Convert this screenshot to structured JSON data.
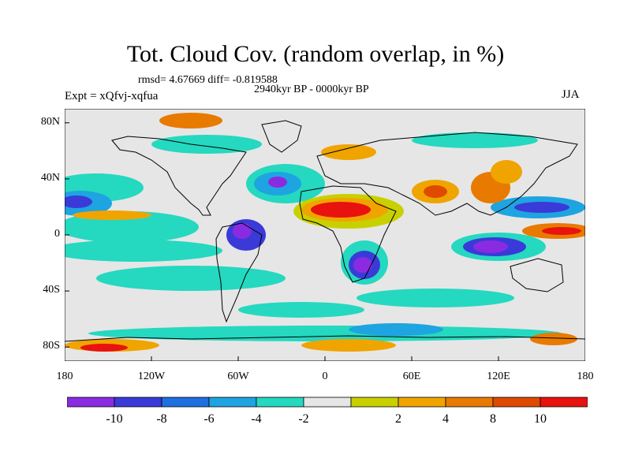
{
  "title": "Tot. Cloud Cov. (random overlap, in %)",
  "stats": "rmsd= 4.67669 diff= -0.819588",
  "period": "2940kyr BP - 0000kyr BP",
  "experiment": "Expt = xQfvj-xqfua",
  "season": "JJA",
  "map": {
    "projection": "cylindrical equidistant",
    "lon_range": [
      -180,
      180
    ],
    "lat_range": [
      -90,
      90
    ],
    "lon_ticks": [
      "180",
      "120W",
      "60W",
      "0",
      "60E",
      "120E",
      "180"
    ],
    "lat_ticks": [
      "80N",
      "40N",
      "0",
      "40S",
      "80S"
    ],
    "background_color": "#e6e6e6",
    "coastline_color": "#000000"
  },
  "colorbar": {
    "colors": [
      "#8a2be2",
      "#3a3ad8",
      "#1f6fe0",
      "#1ea4e0",
      "#25d8c0",
      "#e6e6e6",
      "#c9d000",
      "#f0a400",
      "#e87a00",
      "#e04a00",
      "#e8120e"
    ],
    "labels": [
      "-10",
      "-8",
      "-6",
      "-4",
      "-2",
      "2",
      "4",
      "8",
      "10"
    ]
  }
}
